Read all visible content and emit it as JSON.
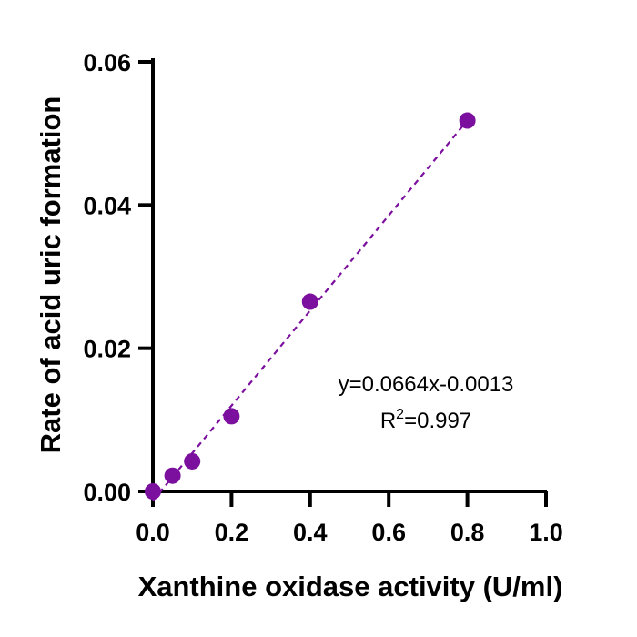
{
  "chart_data": {
    "type": "scatter",
    "title": "",
    "xlabel": "Xanthine oxidase activity (U/ml)",
    "ylabel": "Rate of acid uric formation",
    "xlim": [
      0,
      1.0
    ],
    "ylim": [
      0,
      0.06
    ],
    "x_ticks": [
      "0.0",
      "0.2",
      "0.4",
      "0.6",
      "0.8",
      "1.0"
    ],
    "y_ticks": [
      "0.00",
      "0.02",
      "0.04",
      "0.06"
    ],
    "grid": false,
    "legend": "none",
    "series": [
      {
        "x": [
          0,
          0.05,
          0.1,
          0.2,
          0.4,
          0.8
        ],
        "y": [
          0.0,
          0.0022,
          0.0042,
          0.0105,
          0.0265,
          0.0518
        ],
        "color": "#7B0F9E"
      }
    ],
    "fit_line": {
      "slope": 0.0664,
      "intercept": -0.0013,
      "x_range": [
        0,
        0.8
      ],
      "style": "dashed",
      "color": "#7B0F9E"
    },
    "annotation": {
      "equation": "y=0.0664x-0.0013",
      "r2_prefix": "R",
      "r2_superscript": "2",
      "r2_value": "=0.997"
    }
  }
}
